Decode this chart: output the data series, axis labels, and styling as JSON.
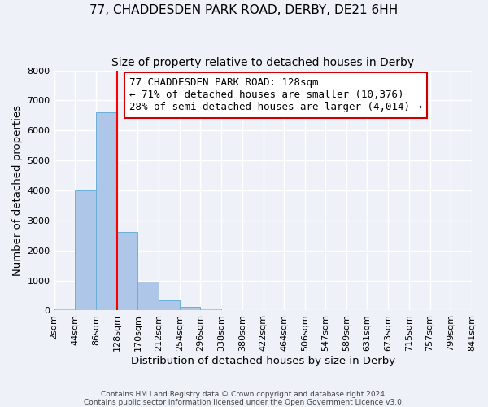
{
  "title": "77, CHADDESDEN PARK ROAD, DERBY, DE21 6HH",
  "subtitle": "Size of property relative to detached houses in Derby",
  "xlabel": "Distribution of detached houses by size in Derby",
  "ylabel": "Number of detached properties",
  "footer_line1": "Contains HM Land Registry data © Crown copyright and database right 2024.",
  "footer_line2": "Contains public sector information licensed under the Open Government Licence v3.0.",
  "bin_edges": [
    2,
    44,
    86,
    128,
    170,
    212,
    254,
    296,
    338,
    380,
    422,
    464,
    506,
    547,
    589,
    631,
    673,
    715,
    757,
    799,
    841
  ],
  "bin_labels": [
    "2sqm",
    "44sqm",
    "86sqm",
    "128sqm",
    "170sqm",
    "212sqm",
    "254sqm",
    "296sqm",
    "338sqm",
    "380sqm",
    "422sqm",
    "464sqm",
    "506sqm",
    "547sqm",
    "589sqm",
    "631sqm",
    "673sqm",
    "715sqm",
    "757sqm",
    "799sqm",
    "841sqm"
  ],
  "counts": [
    60,
    4000,
    6600,
    2620,
    960,
    330,
    120,
    80,
    0,
    0,
    0,
    0,
    0,
    0,
    0,
    0,
    0,
    0,
    0,
    0
  ],
  "bar_color": "#aec6e8",
  "bar_edge_color": "#6aaed6",
  "property_size": 128,
  "vline_color": "#ff0000",
  "annotation_line1": "77 CHADDESDEN PARK ROAD: 128sqm",
  "annotation_line2": "← 71% of detached houses are smaller (10,376)",
  "annotation_line3": "28% of semi-detached houses are larger (4,014) →",
  "annotation_box_color": "#ffffff",
  "annotation_box_edge_color": "#cc0000",
  "ylim": [
    0,
    8000
  ],
  "xlim_left": 2,
  "xlim_right": 841,
  "background_color": "#eef2f8",
  "grid_color": "#ffffff",
  "title_fontsize": 11,
  "subtitle_fontsize": 10,
  "axis_label_fontsize": 9.5,
  "tick_fontsize": 8,
  "annotation_fontsize": 9
}
